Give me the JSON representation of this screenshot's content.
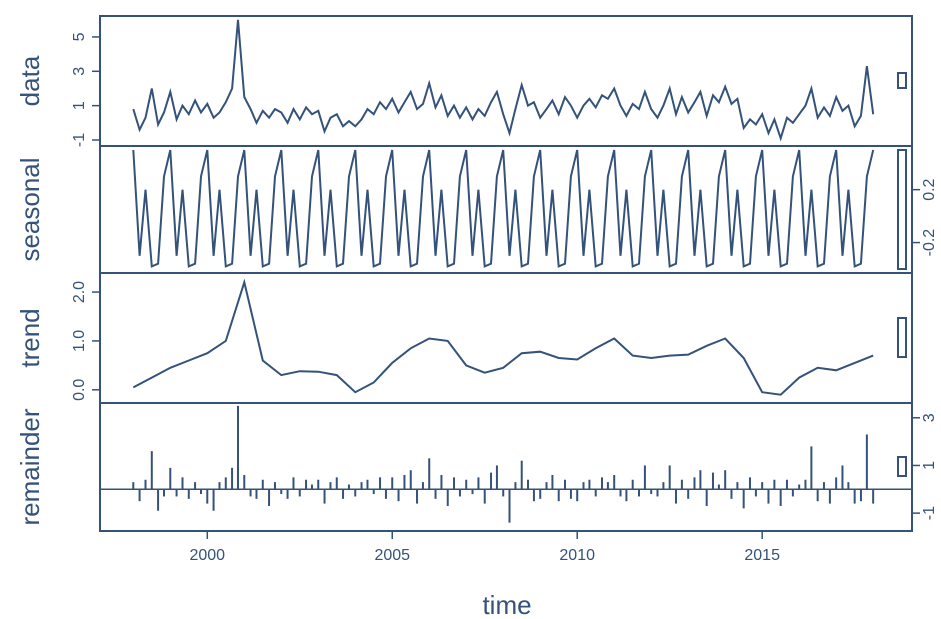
{
  "chart_data": {
    "x_label": "time",
    "xlim": [
      1997.1,
      2019.05
    ],
    "xticks": [
      2000,
      2005,
      2010,
      2015
    ],
    "color": "#34527a",
    "x": [
      1998,
      1998.17,
      1998.33,
      1998.5,
      1998.67,
      1998.83,
      1999,
      1999.17,
      1999.33,
      1999.5,
      1999.67,
      1999.83,
      2000,
      2000.17,
      2000.33,
      2000.5,
      2000.67,
      2000.83,
      2001,
      2001.17,
      2001.33,
      2001.5,
      2001.67,
      2001.83,
      2002,
      2002.17,
      2002.33,
      2002.5,
      2002.67,
      2002.83,
      2003,
      2003.17,
      2003.33,
      2003.5,
      2003.67,
      2003.83,
      2004,
      2004.17,
      2004.33,
      2004.5,
      2004.67,
      2004.83,
      2005,
      2005.17,
      2005.33,
      2005.5,
      2005.67,
      2005.83,
      2006,
      2006.17,
      2006.33,
      2006.5,
      2006.67,
      2006.83,
      2007,
      2007.17,
      2007.33,
      2007.5,
      2007.67,
      2007.83,
      2008,
      2008.17,
      2008.33,
      2008.5,
      2008.67,
      2008.83,
      2009,
      2009.17,
      2009.33,
      2009.5,
      2009.67,
      2009.83,
      2010,
      2010.17,
      2010.33,
      2010.5,
      2010.67,
      2010.83,
      2011,
      2011.17,
      2011.33,
      2011.5,
      2011.67,
      2011.83,
      2012,
      2012.17,
      2012.33,
      2012.5,
      2012.67,
      2012.83,
      2013,
      2013.17,
      2013.33,
      2013.5,
      2013.67,
      2013.83,
      2014,
      2014.17,
      2014.33,
      2014.5,
      2014.67,
      2014.83,
      2015,
      2015.17,
      2015.33,
      2015.5,
      2015.67,
      2015.83,
      2016,
      2016.17,
      2016.33,
      2016.5,
      2016.67,
      2016.83,
      2017,
      2017.17,
      2017.33,
      2017.5,
      2017.67,
      2017.83,
      2018
    ],
    "panels": [
      {
        "label": "data",
        "type": "line",
        "tick_side": "left",
        "ylim": [
          -1.35,
          6.22
        ],
        "yticks": [
          -1,
          1,
          3,
          5
        ],
        "values": [
          0.8,
          -0.4,
          0.3,
          2.0,
          -0.1,
          0.6,
          1.8,
          0.2,
          1.0,
          0.5,
          1.3,
          0.6,
          1.1,
          0.3,
          0.6,
          1.2,
          2.0,
          6.0,
          1.5,
          0.8,
          0.0,
          0.7,
          0.3,
          0.8,
          0.6,
          0.0,
          0.8,
          0.2,
          0.9,
          0.5,
          0.7,
          -0.5,
          0.3,
          0.5,
          -0.2,
          0.1,
          -0.2,
          0.2,
          0.8,
          0.5,
          1.2,
          0.8,
          1.4,
          0.6,
          1.2,
          1.8,
          0.8,
          1.1,
          2.3,
          0.9,
          1.6,
          0.4,
          1.0,
          0.3,
          0.9,
          0.2,
          0.8,
          0.4,
          1.2,
          1.8,
          0.5,
          -0.6,
          0.8,
          2.2,
          1.0,
          1.2,
          0.3,
          0.8,
          1.3,
          0.5,
          1.5,
          1.0,
          0.3,
          1.0,
          1.4,
          0.9,
          1.6,
          1.4,
          2.0,
          1.0,
          0.4,
          1.1,
          0.8,
          1.8,
          0.8,
          0.3,
          1.0,
          2.0,
          0.5,
          1.5,
          0.6,
          1.2,
          1.8,
          0.4,
          1.6,
          1.2,
          2.1,
          1.1,
          1.4,
          -0.3,
          0.2,
          -0.1,
          0.5,
          -0.6,
          0.2,
          -0.9,
          0.3,
          0.0,
          0.5,
          1.0,
          2.0,
          0.3,
          0.9,
          0.4,
          1.5,
          0.7,
          1.0,
          -0.2,
          0.4,
          3.3,
          0.5
        ]
      },
      {
        "label": "seasonal",
        "type": "line",
        "tick_side": "right",
        "ylim": [
          -0.43,
          0.53
        ],
        "yticks": [
          -0.2,
          0.2
        ],
        "values": [
          0.5,
          -0.3,
          0.2,
          -0.38,
          -0.36,
          0.3,
          0.5,
          -0.3,
          0.2,
          -0.38,
          -0.36,
          0.3,
          0.5,
          -0.3,
          0.2,
          -0.38,
          -0.36,
          0.3,
          0.5,
          -0.3,
          0.2,
          -0.38,
          -0.36,
          0.3,
          0.5,
          -0.3,
          0.2,
          -0.38,
          -0.36,
          0.3,
          0.5,
          -0.3,
          0.2,
          -0.38,
          -0.36,
          0.3,
          0.5,
          -0.3,
          0.2,
          -0.38,
          -0.36,
          0.3,
          0.5,
          -0.3,
          0.2,
          -0.38,
          -0.36,
          0.3,
          0.5,
          -0.3,
          0.2,
          -0.38,
          -0.36,
          0.3,
          0.5,
          -0.3,
          0.2,
          -0.38,
          -0.36,
          0.3,
          0.5,
          -0.3,
          0.2,
          -0.38,
          -0.36,
          0.3,
          0.5,
          -0.3,
          0.2,
          -0.38,
          -0.36,
          0.3,
          0.5,
          -0.3,
          0.2,
          -0.38,
          -0.36,
          0.3,
          0.5,
          -0.3,
          0.2,
          -0.38,
          -0.36,
          0.3,
          0.5,
          -0.3,
          0.2,
          -0.38,
          -0.36,
          0.3,
          0.5,
          -0.3,
          0.2,
          -0.38,
          -0.36,
          0.3,
          0.5,
          -0.3,
          0.2,
          -0.38,
          -0.36,
          0.3,
          0.5,
          -0.3,
          0.2,
          -0.38,
          -0.36,
          0.3,
          0.5,
          -0.3,
          0.2,
          -0.38,
          -0.36,
          0.3,
          0.5,
          -0.3,
          0.2,
          -0.38,
          -0.36,
          0.3,
          0.5
        ]
      },
      {
        "label": "trend",
        "type": "line",
        "tick_side": "left",
        "ylim": [
          -0.27,
          2.39
        ],
        "yticks": [
          {
            "value": 0,
            "label": "0.0"
          },
          {
            "value": 1,
            "label": "1.0"
          },
          {
            "value": 2,
            "label": "2.0"
          }
        ],
        "x": [
          1998,
          1998.5,
          1999,
          1999.5,
          2000,
          2000.5,
          2001,
          2001.5,
          2002,
          2002.5,
          2003,
          2003.5,
          2004,
          2004.5,
          2005,
          2005.5,
          2006,
          2006.5,
          2007,
          2007.5,
          2008,
          2008.5,
          2009,
          2009.5,
          2010,
          2010.5,
          2011,
          2011.5,
          2012,
          2012.5,
          2013,
          2013.5,
          2014,
          2014.5,
          2015,
          2015.5,
          2016,
          2016.5,
          2017,
          2017.5,
          2018
        ],
        "values": [
          0.05,
          0.25,
          0.45,
          0.6,
          0.75,
          1.0,
          2.2,
          0.6,
          0.3,
          0.38,
          0.37,
          0.3,
          -0.05,
          0.15,
          0.55,
          0.85,
          1.05,
          1.0,
          0.5,
          0.35,
          0.45,
          0.75,
          0.78,
          0.65,
          0.62,
          0.85,
          1.05,
          0.7,
          0.65,
          0.7,
          0.72,
          0.9,
          1.05,
          0.65,
          -0.05,
          -0.1,
          0.25,
          0.45,
          0.4,
          0.55,
          0.7
        ]
      },
      {
        "label": "remainder",
        "type": "bar",
        "tick_side": "right",
        "ylim": [
          -1.75,
          3.62
        ],
        "yticks": [
          -1,
          1,
          3
        ],
        "values": [
          0.3,
          -0.5,
          0.4,
          1.6,
          -0.9,
          -0.3,
          0.9,
          -0.3,
          0.5,
          -0.4,
          0.3,
          -0.2,
          -0.6,
          -0.9,
          0.3,
          0.5,
          0.9,
          3.5,
          0.6,
          -0.3,
          -0.4,
          0.4,
          -0.7,
          0.3,
          -0.2,
          -0.4,
          0.5,
          -0.3,
          0.4,
          0.2,
          0.4,
          -0.6,
          0.3,
          0.5,
          -0.4,
          0.2,
          -0.3,
          0.3,
          0.4,
          -0.2,
          0.5,
          -0.4,
          0.5,
          -0.5,
          0.6,
          0.8,
          -0.6,
          0.3,
          1.3,
          -0.4,
          0.6,
          -0.7,
          0.5,
          -0.3,
          0.4,
          -0.2,
          0.5,
          -0.6,
          0.7,
          1.0,
          -0.3,
          -1.4,
          0.3,
          1.2,
          0.4,
          -0.5,
          -0.4,
          0.3,
          0.6,
          -0.5,
          0.4,
          -0.4,
          -0.5,
          0.3,
          0.4,
          -0.3,
          0.5,
          0.3,
          0.6,
          -0.3,
          -0.5,
          0.4,
          -0.3,
          1.0,
          -0.2,
          -0.3,
          0.3,
          1.0,
          -0.6,
          0.4,
          -0.4,
          0.5,
          0.8,
          -0.7,
          0.7,
          0.2,
          0.8,
          -0.4,
          0.3,
          -0.8,
          0.5,
          -0.3,
          0.3,
          -0.6,
          0.4,
          -0.7,
          0.4,
          -0.3,
          0.2,
          0.4,
          1.8,
          -0.5,
          0.3,
          -0.6,
          0.5,
          1.0,
          0.3,
          -0.6,
          -0.5,
          2.3,
          -0.6
        ]
      }
    ]
  }
}
